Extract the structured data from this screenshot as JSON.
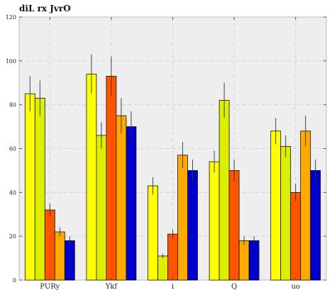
{
  "chart_data": {
    "type": "bar",
    "title": "diL rx JvrO",
    "xlabel": "",
    "ylabel": "",
    "categories": [
      "PURy",
      "Ykf",
      "i",
      "Q",
      "uo"
    ],
    "ylim": [
      0,
      120
    ],
    "yticks": [
      0,
      20,
      40,
      60,
      80,
      100,
      120
    ],
    "grid": true,
    "legend": "none",
    "series": [
      {
        "color": "#ffff00",
        "values": [
          85,
          94,
          43,
          54,
          68
        ],
        "errors": [
          8,
          9,
          4,
          5,
          6
        ]
      },
      {
        "color": "#ddee00",
        "values": [
          83,
          66,
          11,
          82,
          61
        ],
        "errors": [
          8,
          6,
          1,
          8,
          5
        ]
      },
      {
        "color": "#ff5500",
        "values": [
          32,
          93,
          21,
          50,
          40
        ],
        "errors": [
          3,
          9,
          2,
          5,
          4
        ]
      },
      {
        "color": "#ffaa00",
        "values": [
          22,
          75,
          57,
          18,
          68
        ],
        "errors": [
          2,
          8,
          6,
          2,
          7
        ]
      },
      {
        "color": "#0000cc",
        "values": [
          18,
          70,
          50,
          18,
          50
        ],
        "errors": [
          2,
          7,
          5,
          2,
          5
        ]
      }
    ]
  }
}
